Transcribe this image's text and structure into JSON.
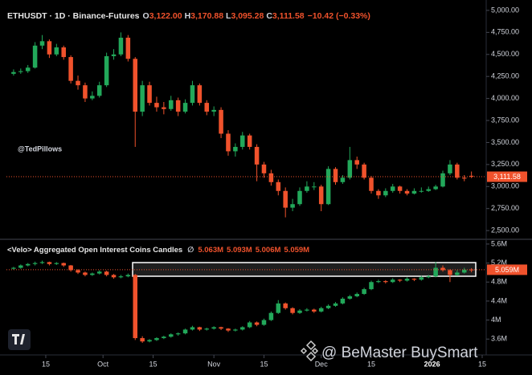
{
  "chart_data": [
    {
      "type": "candlestick",
      "title": "ETHUSDT · 1D · Binance-Futures",
      "ohlc_legend": [
        {
          "key": "O",
          "text": "3,122.00"
        },
        {
          "key": "H",
          "text": "3,170.88"
        },
        {
          "key": "L",
          "text": "3,095.28"
        },
        {
          "key": "C",
          "text": "3,111.58"
        }
      ],
      "change": "−10.42 (−0.33%)",
      "annotation": "@TedPillows",
      "last_label": "3,111.58",
      "up_color": "#22a85a",
      "down_color": "#f0522c",
      "xlim": [
        -1,
        65.5
      ],
      "ylim": [
        2410,
        5045
      ],
      "yticks": [
        {
          "value": 2500,
          "label": "2,500.00"
        },
        {
          "value": 2750,
          "label": "2,750.00"
        },
        {
          "value": 3000,
          "label": "3,000.00"
        },
        {
          "value": 3250,
          "label": "3,250.00"
        },
        {
          "value": 3500,
          "label": "3,500.00"
        },
        {
          "value": 3750,
          "label": "3,750.00"
        },
        {
          "value": 4000,
          "label": "4,000.00"
        },
        {
          "value": 4250,
          "label": "4,250.00"
        },
        {
          "value": 4500,
          "label": "4,500.00"
        },
        {
          "value": 4750,
          "label": "4,750.00"
        },
        {
          "value": 5000,
          "label": "5,000.00"
        }
      ],
      "candles": [
        [
          4280,
          4330,
          4260,
          4300
        ],
        [
          4300,
          4340,
          4280,
          4310
        ],
        [
          4310,
          4380,
          4290,
          4350
        ],
        [
          4350,
          4640,
          4340,
          4600
        ],
        [
          4600,
          4720,
          4560,
          4650
        ],
        [
          4650,
          4670,
          4460,
          4500
        ],
        [
          4500,
          4620,
          4480,
          4580
        ],
        [
          4580,
          4600,
          4440,
          4470
        ],
        [
          4470,
          4490,
          4170,
          4200
        ],
        [
          4200,
          4260,
          4100,
          4150
        ],
        [
          4150,
          4180,
          3960,
          4000
        ],
        [
          4000,
          4080,
          3980,
          4030
        ],
        [
          4030,
          4190,
          4010,
          4150
        ],
        [
          4150,
          4520,
          4130,
          4480
        ],
        [
          4480,
          4560,
          4440,
          4500
        ],
        [
          4500,
          4750,
          4480,
          4690
        ],
        [
          4690,
          4720,
          4420,
          4450
        ],
        [
          4450,
          4470,
          3450,
          3850
        ],
        [
          3850,
          4200,
          3800,
          4150
        ],
        [
          4150,
          4190,
          3920,
          3950
        ],
        [
          3950,
          4020,
          3850,
          3900
        ],
        [
          3900,
          3960,
          3820,
          3880
        ],
        [
          3880,
          4030,
          3860,
          3980
        ],
        [
          3980,
          4010,
          3800,
          3850
        ],
        [
          3850,
          3990,
          3830,
          3950
        ],
        [
          3950,
          4200,
          3920,
          4150
        ],
        [
          4150,
          4170,
          3920,
          3950
        ],
        [
          3950,
          3980,
          3810,
          3850
        ],
        [
          3850,
          3910,
          3800,
          3870
        ],
        [
          3870,
          3900,
          3550,
          3600
        ],
        [
          3600,
          3640,
          3350,
          3400
        ],
        [
          3400,
          3490,
          3340,
          3450
        ],
        [
          3450,
          3620,
          3420,
          3580
        ],
        [
          3580,
          3600,
          3420,
          3450
        ],
        [
          3450,
          3480,
          3060,
          3250
        ],
        [
          3250,
          3280,
          3100,
          3150
        ],
        [
          3150,
          3190,
          3010,
          3050
        ],
        [
          3050,
          3080,
          2900,
          2950
        ],
        [
          2950,
          2990,
          2650,
          2760
        ],
        [
          2760,
          2860,
          2720,
          2800
        ],
        [
          2800,
          2990,
          2780,
          2950
        ],
        [
          2950,
          3060,
          2930,
          3000
        ],
        [
          3000,
          3050,
          2960,
          3000
        ],
        [
          3000,
          3020,
          2720,
          2800
        ],
        [
          2800,
          3230,
          2790,
          3200
        ],
        [
          3200,
          3220,
          3020,
          3050
        ],
        [
          3050,
          3130,
          3030,
          3100
        ],
        [
          3100,
          3450,
          3080,
          3300
        ],
        [
          3300,
          3340,
          3200,
          3250
        ],
        [
          3250,
          3270,
          3080,
          3100
        ],
        [
          3100,
          3120,
          2920,
          2950
        ],
        [
          2950,
          2970,
          2860,
          2900
        ],
        [
          2900,
          2980,
          2880,
          2950
        ],
        [
          2950,
          3030,
          2930,
          3000
        ],
        [
          3000,
          3010,
          2920,
          2950
        ],
        [
          2950,
          2970,
          2900,
          2920
        ],
        [
          2920,
          2980,
          2910,
          2950
        ],
        [
          2950,
          2990,
          2930,
          2950
        ],
        [
          2950,
          3000,
          2940,
          2970
        ],
        [
          2970,
          3020,
          2960,
          3000
        ],
        [
          3000,
          3180,
          2990,
          3150
        ],
        [
          3150,
          3300,
          3130,
          3250
        ],
        [
          3250,
          3270,
          3080,
          3100
        ],
        [
          3100,
          3130,
          3060,
          3090
        ],
        [
          3122,
          3170.88,
          3095.28,
          3111.58
        ]
      ]
    },
    {
      "type": "candlestick",
      "title": "<Velo> Aggregated Open Interest Coins Candles",
      "symbol": "∅",
      "ohlc_legend_text": [
        "5.063M",
        "5.093M",
        "5.006M",
        "5.059M"
      ],
      "last_label": "5.059M",
      "up_color": "#22a85a",
      "down_color": "#f0522c",
      "xlim": [
        -1,
        65.5
      ],
      "xticks": [
        {
          "value": 4.5,
          "label": "15"
        },
        {
          "value": 12.5,
          "label": "Oct"
        },
        {
          "value": 19.5,
          "label": "15"
        },
        {
          "value": 28,
          "label": "Nov"
        },
        {
          "value": 35,
          "label": "15"
        },
        {
          "value": 43,
          "label": "Dec"
        },
        {
          "value": 50,
          "label": "15"
        },
        {
          "value": 58.5,
          "label": "2026"
        },
        {
          "value": 65.5,
          "label": "15"
        }
      ],
      "ylim": [
        3.3,
        5.7
      ],
      "yticks": [
        {
          "value": 3.6,
          "label": "3.6M"
        },
        {
          "value": 4,
          "label": "4M"
        },
        {
          "value": 4.4,
          "label": "4.4M"
        },
        {
          "value": 4.8,
          "label": "4.8M"
        },
        {
          "value": 5.2,
          "label": "5.2M"
        },
        {
          "value": 5.6,
          "label": "5.6M"
        }
      ],
      "candles": [
        [
          5.08,
          5.12,
          5.06,
          5.1
        ],
        [
          5.1,
          5.17,
          5.08,
          5.15
        ],
        [
          5.15,
          5.2,
          5.13,
          5.18
        ],
        [
          5.18,
          5.23,
          5.15,
          5.2
        ],
        [
          5.2,
          5.25,
          5.18,
          5.22
        ],
        [
          5.22,
          5.23,
          5.15,
          5.18
        ],
        [
          5.18,
          5.22,
          5.16,
          5.2
        ],
        [
          5.2,
          5.21,
          5.12,
          5.15
        ],
        [
          5.15,
          5.16,
          5.02,
          5.05
        ],
        [
          5.05,
          5.07,
          4.97,
          5.0
        ],
        [
          5.0,
          5.02,
          4.92,
          4.95
        ],
        [
          4.95,
          5.0,
          4.93,
          4.98
        ],
        [
          4.98,
          5.05,
          4.96,
          5.02
        ],
        [
          5.02,
          5.04,
          4.92,
          4.95
        ],
        [
          4.95,
          4.97,
          4.87,
          4.9
        ],
        [
          4.9,
          4.95,
          4.88,
          4.92
        ],
        [
          4.92,
          4.98,
          4.9,
          4.95
        ],
        [
          4.95,
          4.97,
          3.58,
          3.62
        ],
        [
          3.62,
          3.66,
          3.52,
          3.55
        ],
        [
          3.55,
          3.6,
          3.53,
          3.58
        ],
        [
          3.58,
          3.64,
          3.56,
          3.62
        ],
        [
          3.62,
          3.67,
          3.6,
          3.65
        ],
        [
          3.65,
          3.72,
          3.63,
          3.7
        ],
        [
          3.7,
          3.74,
          3.67,
          3.72
        ],
        [
          3.72,
          3.82,
          3.7,
          3.8
        ],
        [
          3.8,
          3.88,
          3.78,
          3.85
        ],
        [
          3.85,
          3.86,
          3.77,
          3.8
        ],
        [
          3.8,
          3.84,
          3.78,
          3.82
        ],
        [
          3.82,
          3.87,
          3.8,
          3.85
        ],
        [
          3.85,
          3.86,
          3.79,
          3.82
        ],
        [
          3.82,
          3.83,
          3.75,
          3.78
        ],
        [
          3.78,
          3.82,
          3.76,
          3.8
        ],
        [
          3.8,
          3.87,
          3.78,
          3.85
        ],
        [
          3.85,
          3.98,
          3.83,
          3.95
        ],
        [
          3.95,
          3.97,
          3.87,
          3.9
        ],
        [
          3.9,
          4.03,
          3.88,
          4.0
        ],
        [
          4.0,
          4.18,
          3.98,
          4.15
        ],
        [
          4.15,
          4.42,
          4.13,
          4.35
        ],
        [
          4.35,
          4.37,
          4.22,
          4.25
        ],
        [
          4.25,
          4.27,
          4.12,
          4.15
        ],
        [
          4.15,
          4.23,
          4.13,
          4.2
        ],
        [
          4.2,
          4.25,
          4.18,
          4.22
        ],
        [
          4.22,
          4.24,
          4.15,
          4.18
        ],
        [
          4.18,
          4.28,
          4.16,
          4.25
        ],
        [
          4.25,
          4.33,
          4.23,
          4.3
        ],
        [
          4.3,
          4.38,
          4.28,
          4.35
        ],
        [
          4.35,
          4.48,
          4.33,
          4.45
        ],
        [
          4.45,
          4.53,
          4.43,
          4.5
        ],
        [
          4.5,
          4.58,
          4.48,
          4.55
        ],
        [
          4.55,
          4.68,
          4.53,
          4.65
        ],
        [
          4.65,
          4.83,
          4.63,
          4.8
        ],
        [
          4.8,
          4.85,
          4.78,
          4.82
        ],
        [
          4.82,
          4.84,
          4.77,
          4.8
        ],
        [
          4.8,
          4.88,
          4.78,
          4.85
        ],
        [
          4.85,
          4.86,
          4.8,
          4.83
        ],
        [
          4.83,
          4.9,
          4.81,
          4.87
        ],
        [
          4.87,
          4.88,
          4.82,
          4.85
        ],
        [
          4.85,
          4.93,
          4.83,
          4.9
        ],
        [
          4.9,
          4.95,
          4.88,
          4.92
        ],
        [
          4.92,
          5.22,
          4.9,
          5.1
        ],
        [
          5.1,
          5.15,
          5.02,
          5.05
        ],
        [
          5.05,
          5.07,
          4.8,
          4.95
        ],
        [
          4.95,
          5.05,
          4.93,
          5.0
        ],
        [
          5.0,
          5.1,
          4.98,
          5.06
        ],
        [
          5.063,
          5.093,
          5.006,
          5.059
        ]
      ]
    }
  ],
  "watermark": "@ BeMaster BuySmart"
}
